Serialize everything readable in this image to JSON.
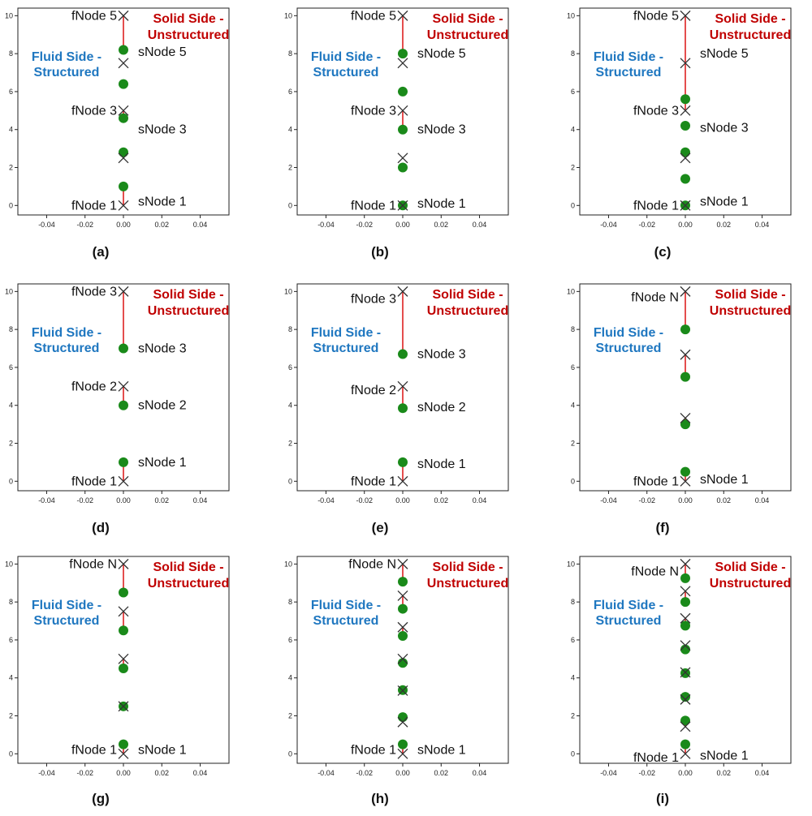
{
  "colors": {
    "fluid_text": "#1f77c0",
    "solid_text": "#c00000",
    "solid_node": "#1a8a1a",
    "fluid_node_marker": "#333333",
    "connector": "#dd2222"
  },
  "chart_data": [
    {
      "type": "scatter",
      "caption": "(a)",
      "xlim": [
        -0.055,
        0.055
      ],
      "ylim": [
        -0.5,
        10.4
      ],
      "xticks": [
        -0.04,
        -0.02,
        0.0,
        0.02,
        0.04
      ],
      "yticks": [
        0,
        2,
        4,
        6,
        8,
        10
      ],
      "fluid_nodes": [
        0,
        2.5,
        5,
        7.5,
        10
      ],
      "solid_nodes": [
        1.0,
        2.8,
        4.6,
        6.4,
        8.2
      ],
      "connectors": [
        [
          0,
          1.0
        ],
        [
          5,
          4.6
        ],
        [
          10,
          8.2
        ]
      ],
      "fluid_side_label": [
        "Fluid Side -",
        "Structured"
      ],
      "solid_side_label": [
        "Solid Side -",
        "Unstructured"
      ],
      "node_labels": [
        {
          "text": "fNode 5",
          "side": "left",
          "y": 10
        },
        {
          "text": "fNode 3",
          "side": "left",
          "y": 5
        },
        {
          "text": "fNode 1",
          "side": "left",
          "y": 0
        },
        {
          "text": "sNode 5",
          "side": "right",
          "y": 8.1
        },
        {
          "text": "sNode 3",
          "side": "right",
          "y": 4.0
        },
        {
          "text": "sNode 1",
          "side": "right",
          "y": 0.2
        }
      ]
    },
    {
      "type": "scatter",
      "caption": "(b)",
      "xlim": [
        -0.055,
        0.055
      ],
      "ylim": [
        -0.5,
        10.4
      ],
      "xticks": [
        -0.04,
        -0.02,
        0.0,
        0.02,
        0.04
      ],
      "yticks": [
        0,
        2,
        4,
        6,
        8,
        10
      ],
      "fluid_nodes": [
        0,
        2.5,
        5,
        7.5,
        10
      ],
      "solid_nodes": [
        0,
        2.0,
        4.0,
        6.0,
        8.0
      ],
      "connectors": [
        [
          5,
          4.0
        ],
        [
          10,
          8.0
        ]
      ],
      "fluid_side_label": [
        "Fluid Side -",
        "Structured"
      ],
      "solid_side_label": [
        "Solid Side -",
        "Unstructured"
      ],
      "node_labels": [
        {
          "text": "fNode 5",
          "side": "left",
          "y": 10
        },
        {
          "text": "fNode 3",
          "side": "left",
          "y": 5
        },
        {
          "text": "fNode 1",
          "side": "left",
          "y": 0
        },
        {
          "text": "sNode 5",
          "side": "right",
          "y": 8.0
        },
        {
          "text": "sNode 3",
          "side": "right",
          "y": 4.0
        },
        {
          "text": "sNode 1",
          "side": "right",
          "y": 0.1
        }
      ]
    },
    {
      "type": "scatter",
      "caption": "(c)",
      "xlim": [
        -0.055,
        0.055
      ],
      "ylim": [
        -0.5,
        10.4
      ],
      "xticks": [
        -0.04,
        -0.02,
        0.0,
        0.02,
        0.04
      ],
      "yticks": [
        0,
        2,
        4,
        6,
        8,
        10
      ],
      "fluid_nodes": [
        0,
        2.5,
        5,
        7.5,
        10
      ],
      "solid_nodes": [
        0,
        1.4,
        2.8,
        4.2,
        5.6
      ],
      "connectors": [
        [
          5,
          5.6
        ],
        [
          10,
          5.6
        ]
      ],
      "fluid_side_label": [
        "Fluid Side -",
        "Structured"
      ],
      "solid_side_label": [
        "Solid Side -",
        "Unstructured"
      ],
      "node_labels": [
        {
          "text": "fNode 5",
          "side": "left",
          "y": 10
        },
        {
          "text": "fNode 3",
          "side": "left",
          "y": 5
        },
        {
          "text": "fNode 1",
          "side": "left",
          "y": 0
        },
        {
          "text": "sNode 5",
          "side": "right",
          "y": 8.0
        },
        {
          "text": "sNode 3",
          "side": "right",
          "y": 4.1
        },
        {
          "text": "sNode 1",
          "side": "right",
          "y": 0.2
        }
      ]
    },
    {
      "type": "scatter",
      "caption": "(d)",
      "xlim": [
        -0.055,
        0.055
      ],
      "ylim": [
        -0.5,
        10.4
      ],
      "xticks": [
        -0.04,
        -0.02,
        0.0,
        0.02,
        0.04
      ],
      "yticks": [
        0,
        2,
        4,
        6,
        8,
        10
      ],
      "fluid_nodes": [
        0,
        5,
        10
      ],
      "solid_nodes": [
        1.0,
        4.0,
        7.0
      ],
      "connectors": [
        [
          0,
          1.0
        ],
        [
          5,
          4.0
        ],
        [
          10,
          7.0
        ]
      ],
      "fluid_side_label": [
        "Fluid Side -",
        "Structured"
      ],
      "solid_side_label": [
        "Solid Side -",
        "Unstructured"
      ],
      "node_labels": [
        {
          "text": "fNode 3",
          "side": "left",
          "y": 10
        },
        {
          "text": "fNode 2",
          "side": "left",
          "y": 5
        },
        {
          "text": "fNode 1",
          "side": "left",
          "y": 0
        },
        {
          "text": "sNode 3",
          "side": "right",
          "y": 7.0
        },
        {
          "text": "sNode 2",
          "side": "right",
          "y": 4.0
        },
        {
          "text": "sNode 1",
          "side": "right",
          "y": 1.0
        }
      ]
    },
    {
      "type": "scatter",
      "caption": "(e)",
      "xlim": [
        -0.055,
        0.055
      ],
      "ylim": [
        -0.5,
        10.4
      ],
      "xticks": [
        -0.04,
        -0.02,
        0.0,
        0.02,
        0.04
      ],
      "yticks": [
        0,
        2,
        4,
        6,
        8,
        10
      ],
      "fluid_nodes": [
        0,
        5,
        10
      ],
      "solid_nodes": [
        1.0,
        3.85,
        6.7
      ],
      "connectors": [
        [
          0,
          1.0
        ],
        [
          5,
          3.85
        ],
        [
          10,
          6.7
        ]
      ],
      "fluid_side_label": [
        "Fluid Side -",
        "Structured"
      ],
      "solid_side_label": [
        "Solid Side -",
        "Unstructured"
      ],
      "node_labels": [
        {
          "text": "fNode 3",
          "side": "left",
          "y": 9.6
        },
        {
          "text": "fNode 2",
          "side": "left",
          "y": 4.8
        },
        {
          "text": "fNode 1",
          "side": "left",
          "y": 0
        },
        {
          "text": "sNode 3",
          "side": "right",
          "y": 6.7
        },
        {
          "text": "sNode 2",
          "side": "right",
          "y": 3.9
        },
        {
          "text": "sNode 1",
          "side": "right",
          "y": 0.9
        }
      ]
    },
    {
      "type": "scatter",
      "caption": "(f)",
      "xlim": [
        -0.055,
        0.055
      ],
      "ylim": [
        -0.5,
        10.4
      ],
      "xticks": [
        -0.04,
        -0.02,
        0.0,
        0.02,
        0.04
      ],
      "yticks": [
        0,
        2,
        4,
        6,
        8,
        10
      ],
      "fluid_nodes": [
        0,
        3.33,
        6.67,
        10
      ],
      "solid_nodes": [
        0.5,
        3.0,
        5.5,
        8.0
      ],
      "connectors": [
        [
          0,
          0.5
        ],
        [
          3.33,
          3.0
        ],
        [
          6.67,
          5.5
        ],
        [
          10,
          8.0
        ]
      ],
      "fluid_side_label": [
        "Fluid Side -",
        "Structured"
      ],
      "solid_side_label": [
        "Solid Side -",
        "Unstructured"
      ],
      "node_labels": [
        {
          "text": "fNode N",
          "side": "left",
          "y": 9.7
        },
        {
          "text": "fNode 1",
          "side": "left",
          "y": 0
        },
        {
          "text": "sNode 1",
          "side": "right",
          "y": 0.1
        }
      ]
    },
    {
      "type": "scatter",
      "caption": "(g)",
      "xlim": [
        -0.055,
        0.055
      ],
      "ylim": [
        -0.5,
        10.4
      ],
      "xticks": [
        -0.04,
        -0.02,
        0.0,
        0.02,
        0.04
      ],
      "yticks": [
        0,
        2,
        4,
        6,
        8,
        10
      ],
      "fluid_nodes": [
        0,
        2.5,
        5,
        7.5,
        10
      ],
      "solid_nodes": [
        0.5,
        2.5,
        4.5,
        6.5,
        8.5
      ],
      "connectors": [
        [
          0,
          0.5
        ],
        [
          5,
          4.5
        ],
        [
          7.5,
          6.5
        ],
        [
          10,
          8.5
        ]
      ],
      "fluid_side_label": [
        "Fluid Side -",
        "Structured"
      ],
      "solid_side_label": [
        "Solid Side -",
        "Unstructured"
      ],
      "node_labels": [
        {
          "text": "fNode N",
          "side": "left",
          "y": 10
        },
        {
          "text": "fNode 1",
          "side": "left",
          "y": 0.2
        },
        {
          "text": "sNode 1",
          "side": "right",
          "y": 0.2
        }
      ]
    },
    {
      "type": "scatter",
      "caption": "(h)",
      "xlim": [
        -0.055,
        0.055
      ],
      "ylim": [
        -0.5,
        10.4
      ],
      "xticks": [
        -0.04,
        -0.02,
        0.0,
        0.02,
        0.04
      ],
      "yticks": [
        0,
        2,
        4,
        6,
        8,
        10
      ],
      "fluid_nodes": [
        0,
        1.67,
        3.33,
        5,
        6.67,
        8.33,
        10
      ],
      "solid_nodes": [
        0.5,
        1.93,
        3.36,
        4.79,
        6.21,
        7.64,
        9.07
      ],
      "connectors": [
        [
          0,
          0.5
        ],
        [
          5,
          4.79
        ],
        [
          6.67,
          6.21
        ],
        [
          8.33,
          7.64
        ],
        [
          10,
          9.07
        ]
      ],
      "fluid_side_label": [
        "Fluid Side -",
        "Structured"
      ],
      "solid_side_label": [
        "Solid Side -",
        "Unstructured"
      ],
      "node_labels": [
        {
          "text": "fNode N",
          "side": "left",
          "y": 10
        },
        {
          "text": "fNode 1",
          "side": "left",
          "y": 0.2
        },
        {
          "text": "sNode 1",
          "side": "right",
          "y": 0.2
        }
      ]
    },
    {
      "type": "scatter",
      "caption": "(i)",
      "xlim": [
        -0.055,
        0.055
      ],
      "ylim": [
        -0.5,
        10.4
      ],
      "xticks": [
        -0.04,
        -0.02,
        0.0,
        0.02,
        0.04
      ],
      "yticks": [
        0,
        2,
        4,
        6,
        8,
        10
      ],
      "fluid_nodes": [
        0,
        1.43,
        2.86,
        4.29,
        5.71,
        7.14,
        8.57,
        10
      ],
      "solid_nodes": [
        0.5,
        1.75,
        3.0,
        4.25,
        5.5,
        6.75,
        8.0,
        9.25
      ],
      "connectors": [
        [
          0,
          0.5
        ],
        [
          1.43,
          1.75
        ],
        [
          7.14,
          6.75
        ],
        [
          8.57,
          8.0
        ],
        [
          10,
          9.25
        ]
      ],
      "fluid_side_label": [
        "Fluid Side -",
        "Structured"
      ],
      "solid_side_label": [
        "Solid Side -",
        "Unstructured"
      ],
      "node_labels": [
        {
          "text": "fNode N",
          "side": "left",
          "y": 9.6
        },
        {
          "text": "fNode 1",
          "side": "left",
          "y": -0.2
        },
        {
          "text": "sNode 1",
          "side": "right",
          "y": -0.1
        }
      ]
    }
  ]
}
